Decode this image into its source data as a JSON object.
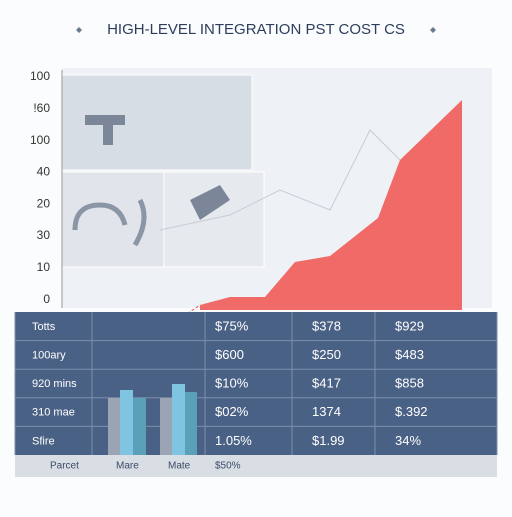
{
  "title": "HIGH-LEVEL INTEGRATION PST COST CS",
  "axis_labels": [
    "100",
    "!60",
    "100",
    "40",
    "20",
    "30",
    "10",
    "0"
  ],
  "table": {
    "rows": [
      [
        "Totts",
        "$75%",
        "$378",
        "$929"
      ],
      [
        "100ary",
        "$600",
        "$250",
        "$483"
      ],
      [
        "920 mins",
        "$10%",
        "$417",
        "$858"
      ],
      [
        "310 mae",
        "$02%",
        "1374",
        "$.392"
      ],
      [
        "Sfire",
        "1.05%",
        "$1.99",
        "34%"
      ]
    ],
    "footer": [
      "Parcet",
      "Mare",
      "Mate",
      "$50%"
    ]
  }
}
